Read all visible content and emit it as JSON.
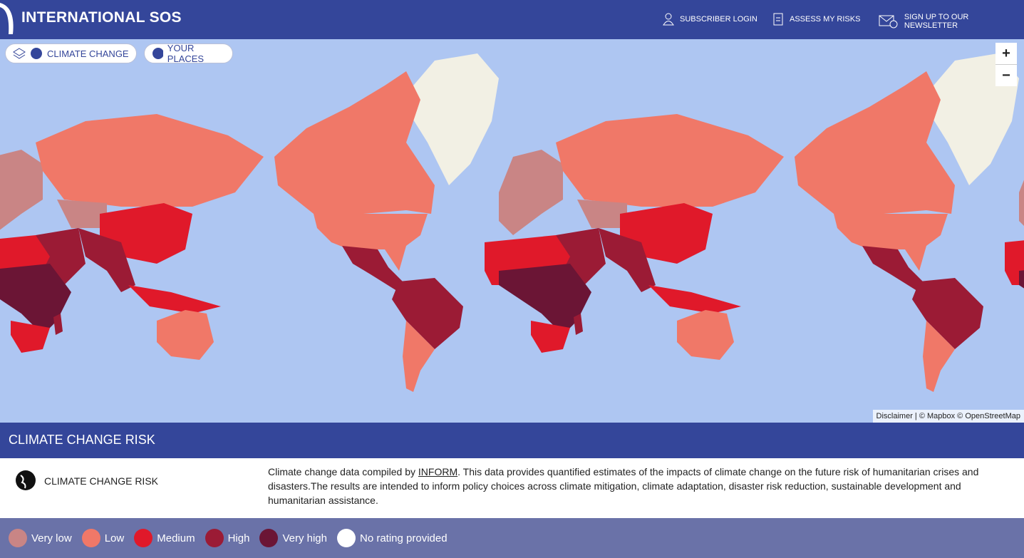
{
  "header": {
    "brand": "INTERNATIONAL SOS",
    "nav": [
      "SUBSCRIBER LOGIN",
      "ASSESS MY RISKS",
      "SIGN UP TO OUR NEWSLETTER"
    ]
  },
  "map": {
    "layers": [
      "CLIMATE CHANGE",
      "YOUR PLACES"
    ],
    "zoom": [
      "+",
      "−"
    ],
    "attribution": "Disclaimer | © Mapbox © OpenStreetMap"
  },
  "panel": {
    "title": "CLIMATE CHANGE RISK",
    "layer_name": "CLIMATE CHANGE RISK",
    "description": {
      "before": "Climate change data compiled by ",
      "link": "INFORM",
      "after": ". This data provides quantified estimates of the impacts of climate change on the future risk of humanitarian crises and disasters.The results are intended to inform policy choices across climate mitigation, climate adaptation, disaster risk reduction, sustainable development and humanitarian assistance."
    }
  },
  "legend": [
    {
      "label": "Very low",
      "color": "#c98585"
    },
    {
      "label": "Low",
      "color": "#f07868"
    },
    {
      "label": "Medium",
      "color": "#e0192a"
    },
    {
      "label": "High",
      "color": "#9b1b35"
    },
    {
      "label": "Very high",
      "color": "#6b1535"
    },
    {
      "label": "No rating provided",
      "color": "#ffffff"
    }
  ]
}
